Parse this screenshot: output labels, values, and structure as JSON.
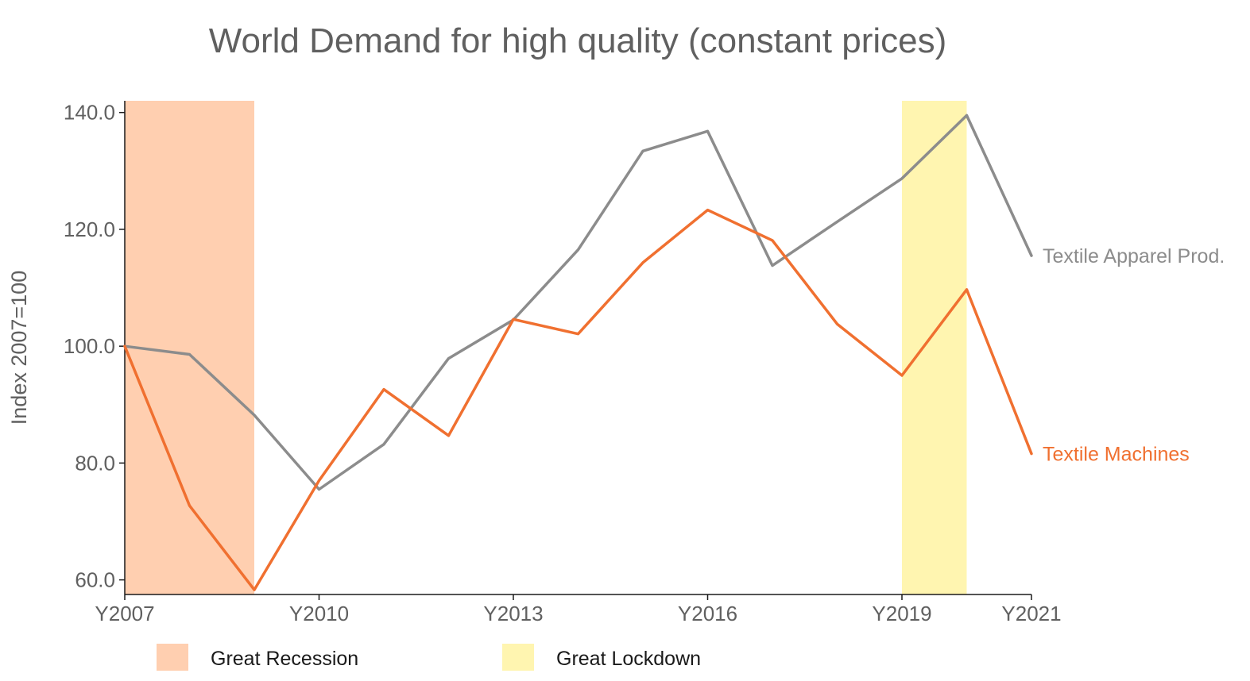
{
  "chart_data": {
    "type": "line",
    "title": "World Demand for high quality (constant prices)",
    "xlabel": "",
    "ylabel": "Index 2007=100",
    "x": [
      2007,
      2008,
      2009,
      2010,
      2011,
      2012,
      2013,
      2014,
      2015,
      2016,
      2017,
      2018,
      2019,
      2020,
      2021
    ],
    "xlim": [
      2007,
      2021
    ],
    "ylim": [
      57.5,
      142.0
    ],
    "x_ticks": [
      {
        "value": 2007,
        "label": "Y2007"
      },
      {
        "value": 2010,
        "label": "Y2010"
      },
      {
        "value": 2013,
        "label": "Y2013"
      },
      {
        "value": 2016,
        "label": "Y2016"
      },
      {
        "value": 2019,
        "label": "Y2019"
      },
      {
        "value": 2021,
        "label": "Y2021"
      }
    ],
    "y_ticks": [
      {
        "value": 60,
        "label": "60.0"
      },
      {
        "value": 80,
        "label": "80.0"
      },
      {
        "value": 100,
        "label": "100.0"
      },
      {
        "value": 120,
        "label": "120.0"
      },
      {
        "value": 140,
        "label": "140.0"
      }
    ],
    "grid": false,
    "series": [
      {
        "name": "Textile Apparel Prod.",
        "color": "#8c8c8c",
        "values": [
          100.0,
          98.6,
          88.2,
          75.5,
          83.2,
          97.9,
          104.5,
          116.5,
          133.4,
          136.8,
          113.8,
          121.3,
          128.7,
          139.5,
          115.5
        ]
      },
      {
        "name": "Textile Machines",
        "color": "#f07030",
        "values": [
          100.0,
          72.7,
          58.3,
          77.0,
          92.6,
          84.7,
          104.6,
          102.1,
          114.3,
          123.3,
          118.1,
          103.8,
          95.0,
          109.7,
          81.6
        ]
      }
    ],
    "shaded_periods": [
      {
        "label": "Great Recession",
        "start": 2007,
        "end": 2009,
        "color": "#ffcfb0"
      },
      {
        "label": "Great Lockdown",
        "start": 2019,
        "end": 2020,
        "color": "#fff5b0"
      }
    ],
    "legend_position": "bottom-left"
  }
}
